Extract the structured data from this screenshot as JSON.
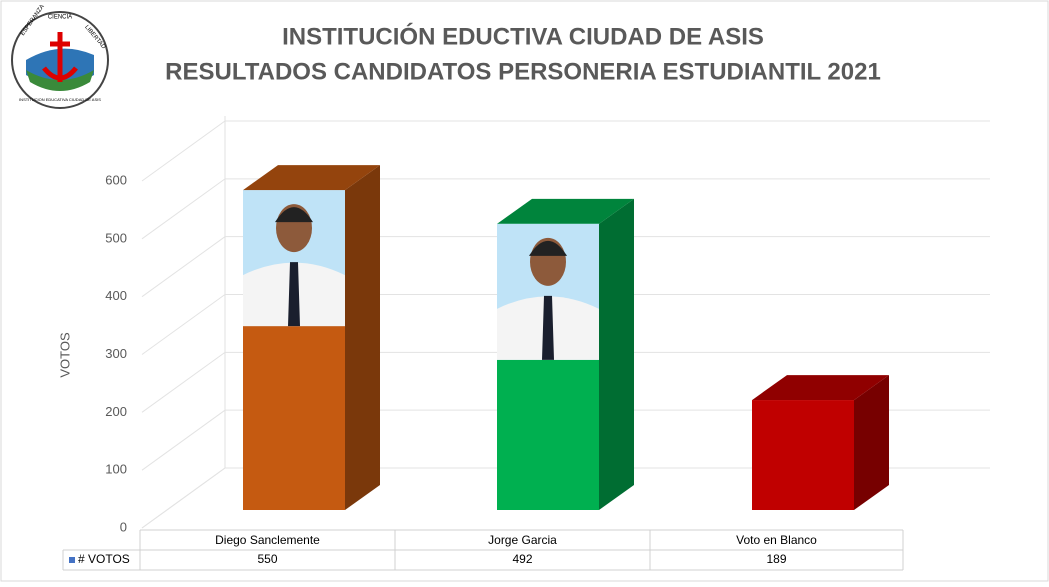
{
  "logo_text": [
    "ESPERANZA",
    "CIENCIA",
    "LIBERTAD",
    "INSTITUCION EDUCATIVA CIUDAD DE ASIS"
  ],
  "chart_data": {
    "type": "bar3d",
    "title": "INSTITUCIÓN EDUCTIVA CIUDAD DE ASIS",
    "subtitle": "RESULTADOS CANDIDATOS PERSONERIA ESTUDIANTIL 2021",
    "y_label": "VOTOS",
    "categories": [
      "Diego Sanclemente",
      "Jorge Garcia",
      "Voto en Blanco"
    ],
    "series": [
      {
        "name": "# VOTOS",
        "color": "#4472c4",
        "point_colors": [
          "#c55a11",
          "#00b050",
          "#c00000"
        ],
        "values": [
          550,
          492,
          189
        ]
      }
    ],
    "ylim": [
      0,
      600
    ],
    "yticks": [
      0,
      100,
      200,
      300,
      400,
      500,
      600
    ],
    "grid": true,
    "data_table": true
  }
}
